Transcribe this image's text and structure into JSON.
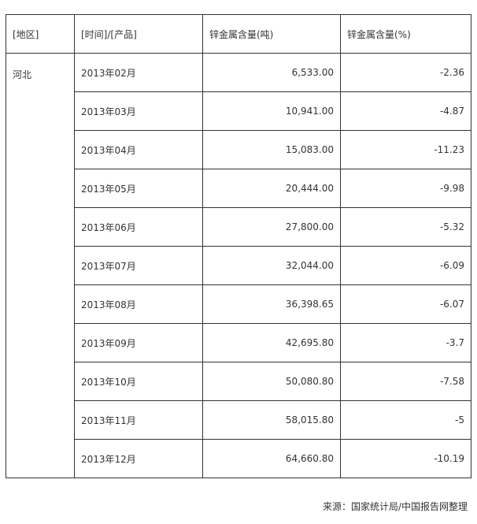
{
  "table": {
    "header": [
      "[地区]",
      "[时间]/[产品]",
      "锌金属含量(吨)",
      "锌金属含量(%)"
    ],
    "region": "河北",
    "rows": [
      [
        "2013年02月",
        "6,533.00",
        "-2.36"
      ],
      [
        "2013年03月",
        "10,941.00",
        "-4.87"
      ],
      [
        "2013年04月",
        "15,083.00",
        "-11.23"
      ],
      [
        "2013年05月",
        "20,444.00",
        "-9.98"
      ],
      [
        "2013年06月",
        "27,800.00",
        "-5.32"
      ],
      [
        "2013年07月",
        "32,044.00",
        "-6.09"
      ],
      [
        "2013年08月",
        "36,398.65",
        "-6.07"
      ],
      [
        "2013年09月",
        "42,695.80",
        "-3.7"
      ],
      [
        "2013年10月",
        "50,080.80",
        "-7.58"
      ],
      [
        "2013年11月",
        "58,015.80",
        "-5"
      ],
      [
        "2013年12月",
        "64,660.80",
        "-10.19"
      ]
    ]
  },
  "source": "来源：国家统计局/中国报告网整理"
}
